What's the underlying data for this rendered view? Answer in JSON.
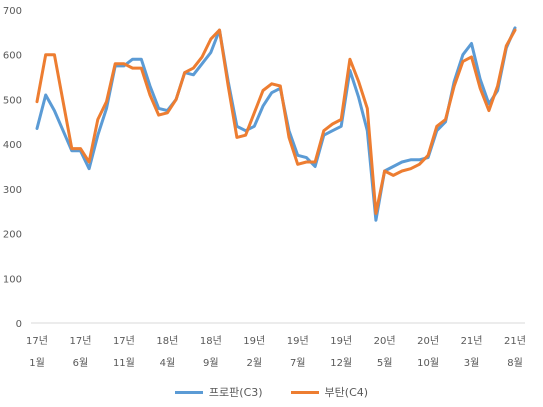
{
  "chart_data": {
    "type": "line",
    "title": "",
    "xlabel": "",
    "ylabel": "",
    "ylim": [
      0,
      700
    ],
    "yticks": [
      0,
      100,
      200,
      300,
      400,
      500,
      600,
      700
    ],
    "grid": false,
    "legend_position": "bottom",
    "x_tick_labels": [
      {
        "index": 0,
        "year": "17년",
        "month": "1월"
      },
      {
        "index": 5,
        "year": "17년",
        "month": "6월"
      },
      {
        "index": 10,
        "year": "17년",
        "month": "11월"
      },
      {
        "index": 15,
        "year": "18년",
        "month": "4월"
      },
      {
        "index": 20,
        "year": "18년",
        "month": "9월"
      },
      {
        "index": 25,
        "year": "19년",
        "month": "2월"
      },
      {
        "index": 30,
        "year": "19년",
        "month": "7월"
      },
      {
        "index": 35,
        "year": "19년",
        "month": "12월"
      },
      {
        "index": 40,
        "year": "20년",
        "month": "5월"
      },
      {
        "index": 45,
        "year": "20년",
        "month": "10월"
      },
      {
        "index": 50,
        "year": "21년",
        "month": "3월"
      },
      {
        "index": 55,
        "year": "21년",
        "month": "8월"
      }
    ],
    "series": [
      {
        "name": "프로판(C3)",
        "color": "#5b9bd5",
        "values": [
          435,
          510,
          475,
          430,
          385,
          385,
          345,
          420,
          480,
          575,
          575,
          590,
          590,
          530,
          480,
          475,
          500,
          560,
          555,
          580,
          605,
          655,
          540,
          440,
          430,
          440,
          485,
          515,
          525,
          430,
          375,
          370,
          350,
          420,
          430,
          440,
          565,
          505,
          430,
          230,
          340,
          350,
          360,
          365,
          365,
          370,
          430,
          450,
          540,
          600,
          625,
          545,
          490,
          520,
          615,
          660
        ]
      },
      {
        "name": "부탄(C4)",
        "color": "#ed7d31",
        "values": [
          495,
          600,
          600,
          495,
          390,
          390,
          360,
          455,
          495,
          580,
          580,
          570,
          570,
          510,
          465,
          470,
          500,
          560,
          570,
          595,
          635,
          655,
          530,
          415,
          420,
          470,
          520,
          535,
          530,
          415,
          355,
          360,
          360,
          430,
          445,
          455,
          590,
          540,
          480,
          245,
          340,
          330,
          340,
          345,
          355,
          375,
          440,
          455,
          530,
          585,
          595,
          525,
          475,
          530,
          620,
          655
        ]
      }
    ]
  }
}
